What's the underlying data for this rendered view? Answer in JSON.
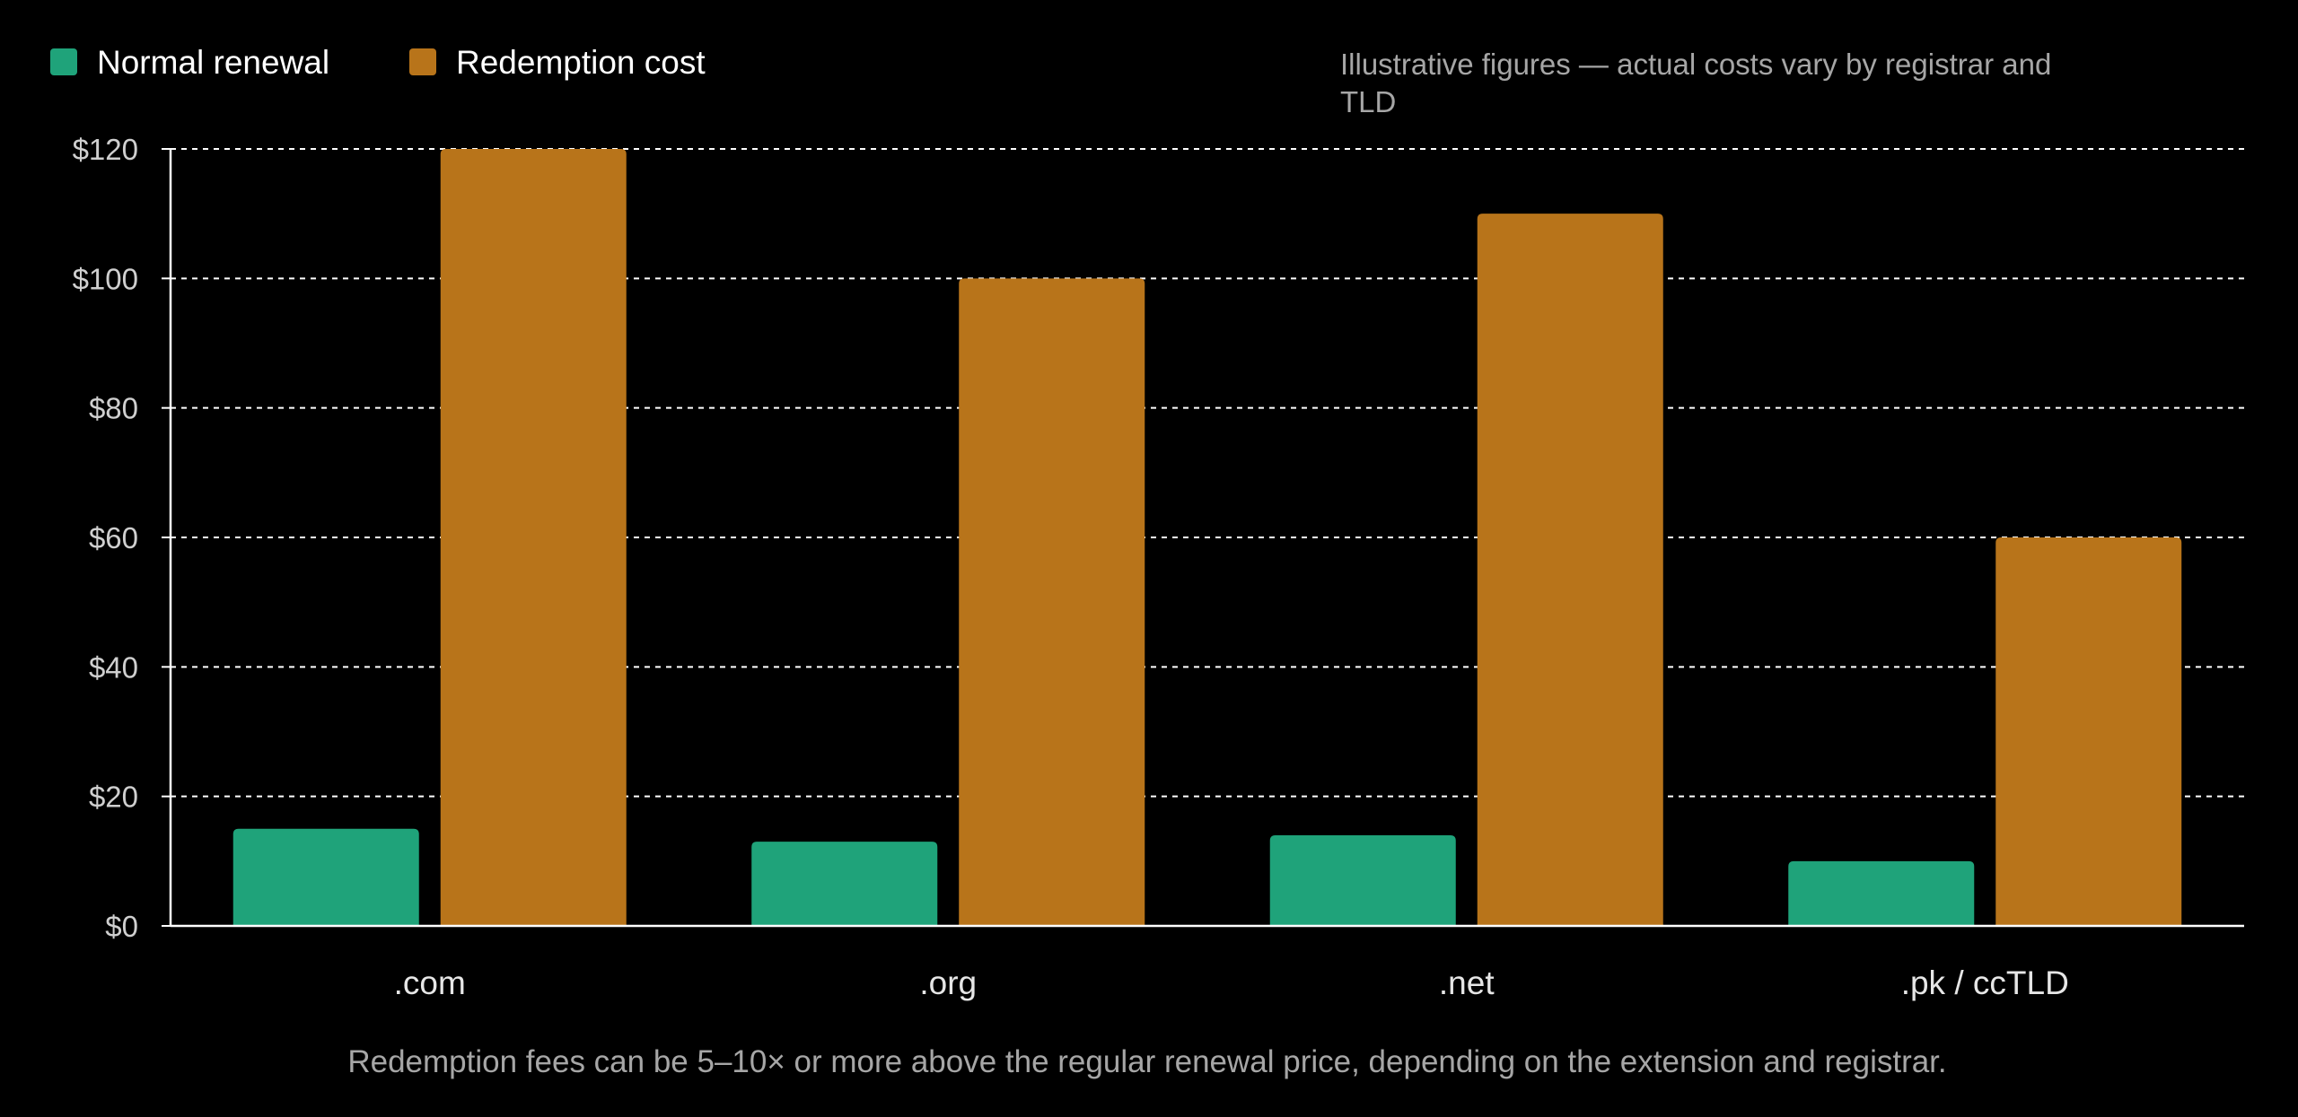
{
  "chart_data": {
    "type": "bar",
    "title": "",
    "xlabel": "",
    "ylabel": "",
    "categories": [
      ".com",
      ".org",
      ".net",
      ".pk / ccTLD"
    ],
    "series": [
      {
        "name": "Normal renewal",
        "color": "#1fa37a",
        "values": [
          15,
          13,
          14,
          10
        ]
      },
      {
        "name": "Redemption cost",
        "color": "#b8741a",
        "values": [
          120,
          100,
          110,
          60
        ]
      }
    ],
    "ylim": [
      0,
      120
    ],
    "yticks": [
      0,
      20,
      40,
      60,
      80,
      100,
      120
    ],
    "ytick_labels": [
      "$0",
      "$20",
      "$40",
      "$60",
      "$80",
      "$100",
      "$120"
    ],
    "grid": "dashed horizontal",
    "legend_position": "top-left",
    "note_lines": [
      "Illustrative figures — actual costs vary by registrar and",
      "TLD"
    ],
    "caption": "Redemption fees can be 5–10× or more above the regular renewal price, depending on the extension and registrar."
  }
}
